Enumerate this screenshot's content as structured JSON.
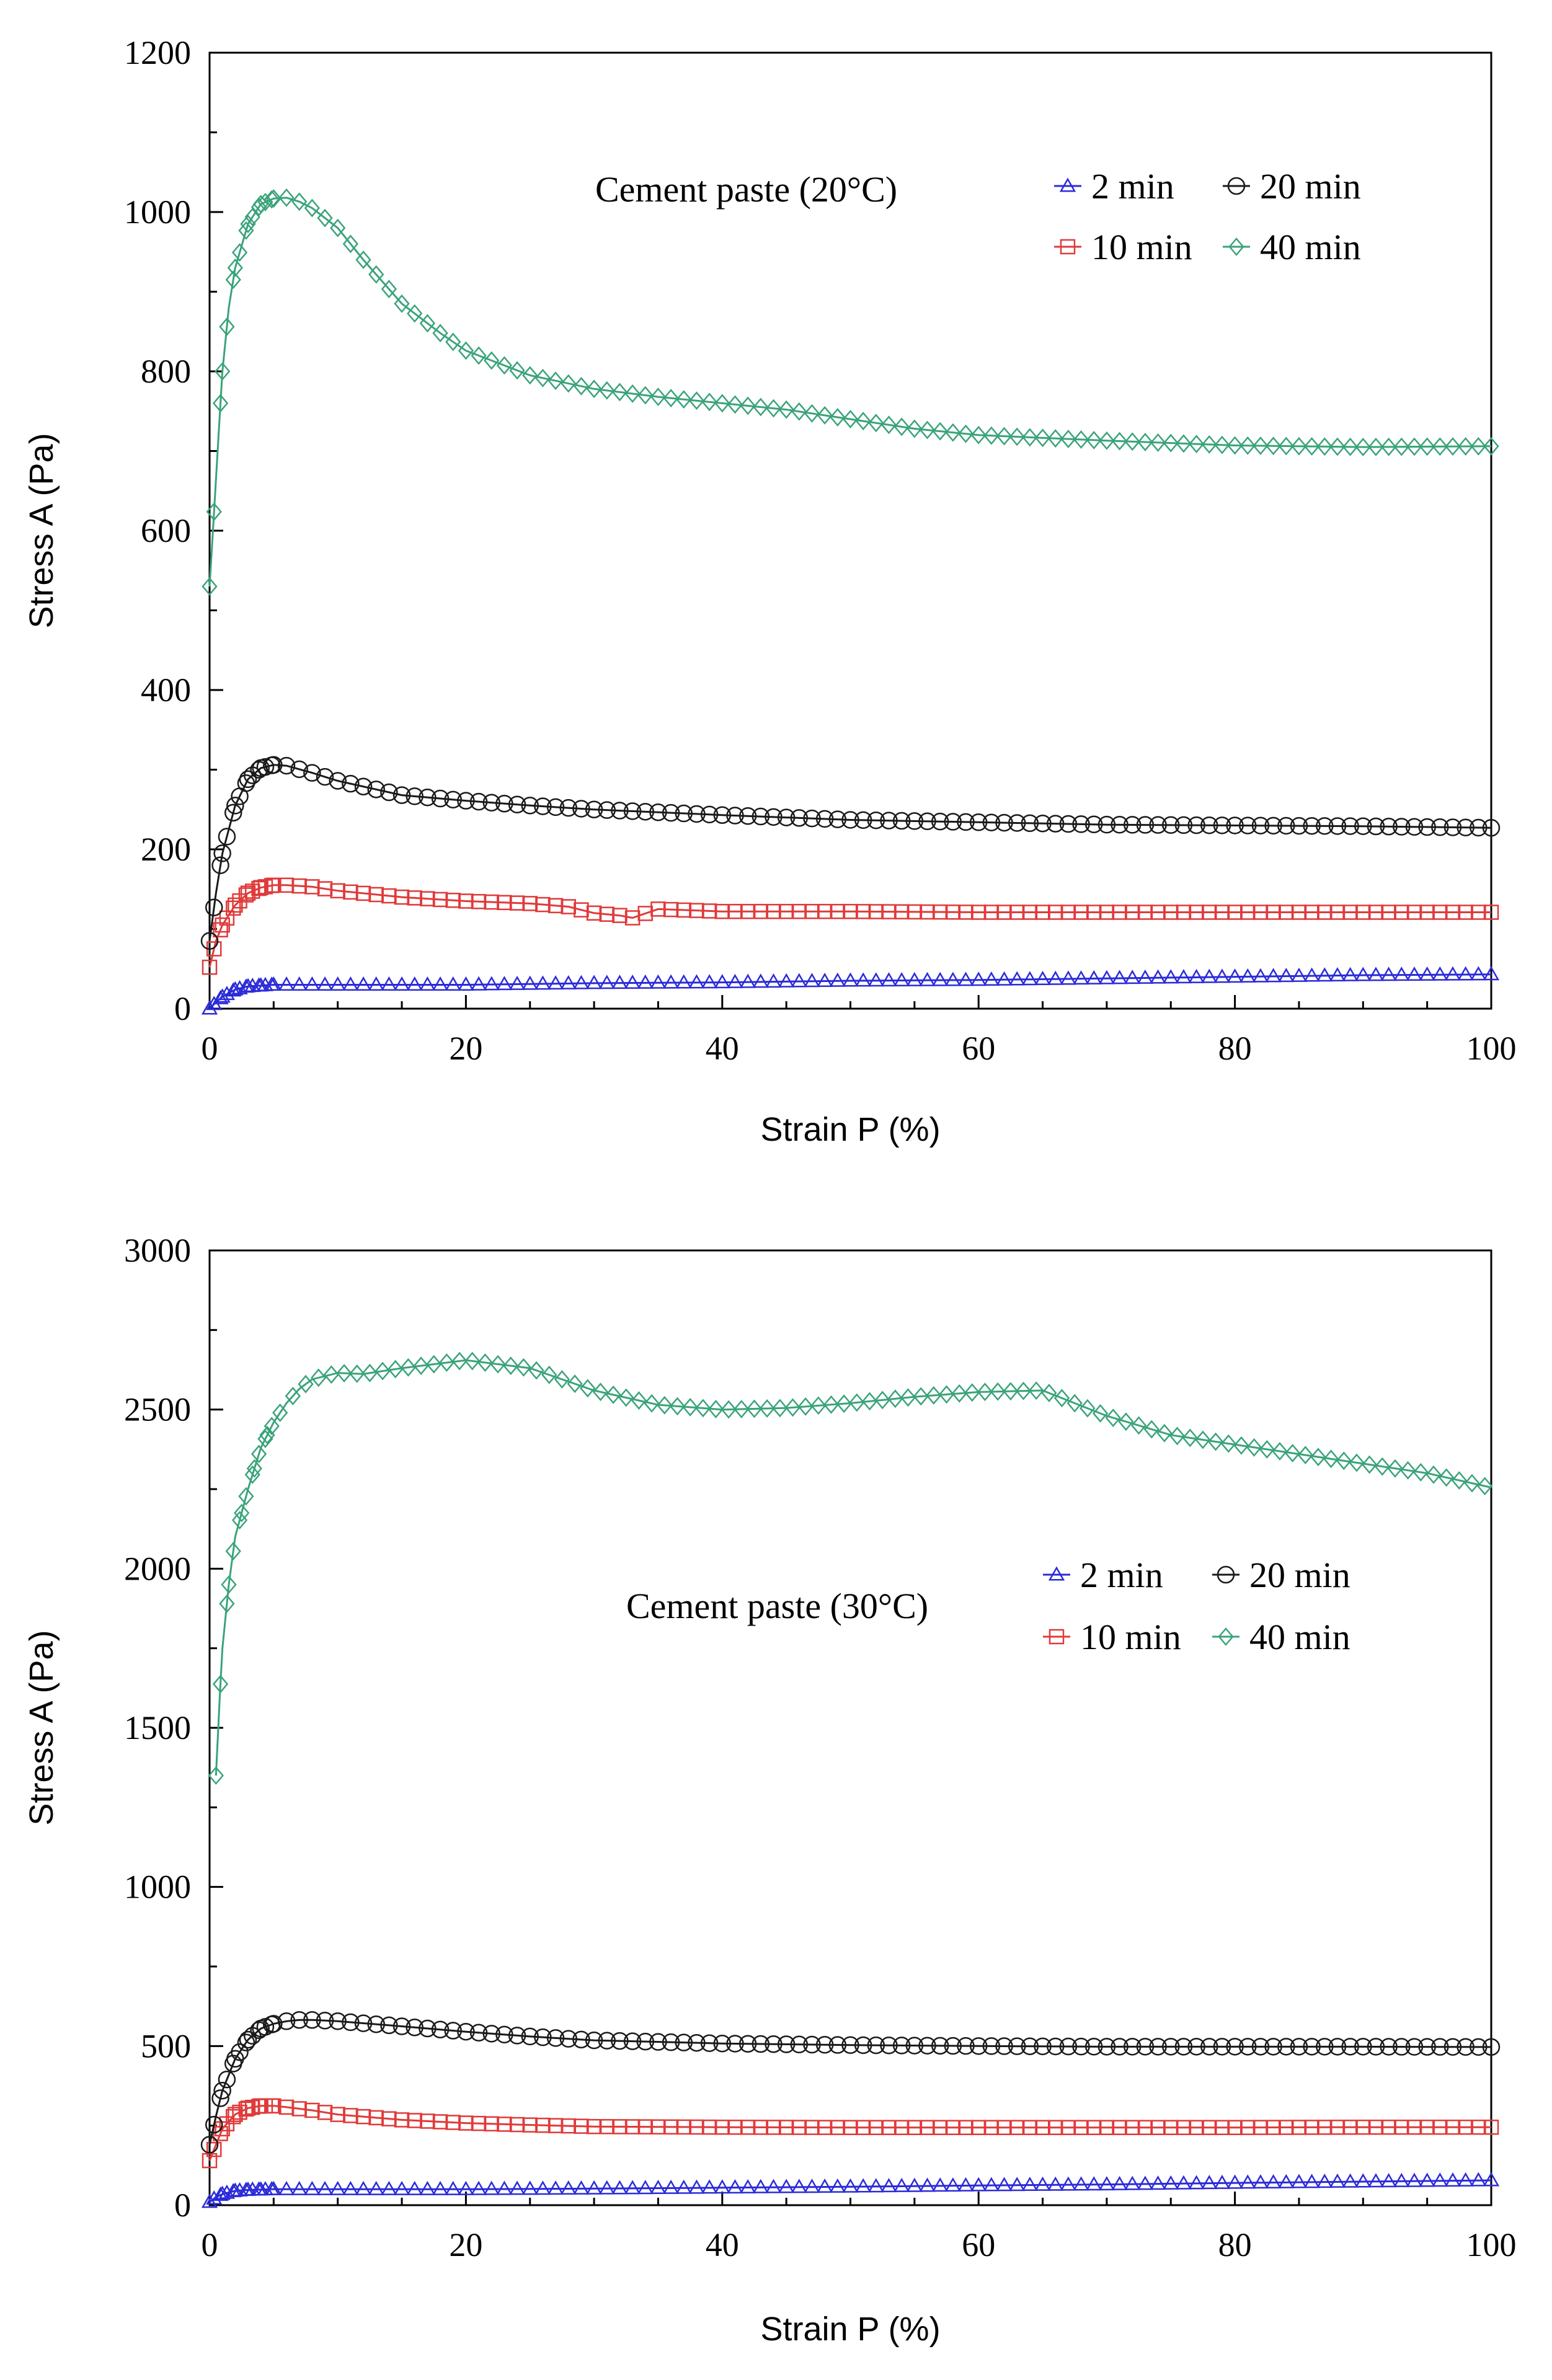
{
  "chart_data": [
    {
      "type": "line",
      "annotation": "Cement paste (20°C)",
      "xlabel": "Strain P (%)",
      "ylabel": "Stress A (Pa)",
      "xlim": [
        0,
        100
      ],
      "ylim": [
        0,
        1200
      ],
      "xticks": [
        0,
        20,
        40,
        60,
        80,
        100
      ],
      "yticks": [
        0,
        200,
        400,
        600,
        800,
        1000,
        1200
      ],
      "legend_position": "top-right",
      "series": [
        {
          "name": "2 min",
          "color": "#2b2bd9",
          "marker": "triangle",
          "x": [
            0,
            0.5,
            1,
            2,
            3,
            5,
            8,
            10,
            15,
            20,
            30,
            40,
            50,
            60,
            70,
            80,
            90,
            100
          ],
          "y": [
            0,
            8,
            15,
            24,
            28,
            30,
            30,
            30,
            30,
            30,
            32,
            33,
            35,
            36,
            38,
            40,
            42,
            43
          ]
        },
        {
          "name": "10 min",
          "color": "#e03a3a",
          "marker": "square",
          "x": [
            0,
            0.5,
            1,
            2,
            3,
            4,
            5,
            6,
            8,
            10,
            15,
            20,
            25,
            28,
            30,
            32,
            33,
            35,
            40,
            50,
            60,
            70,
            80,
            90,
            100
          ],
          "y": [
            52,
            85,
            105,
            130,
            145,
            152,
            155,
            155,
            153,
            148,
            140,
            135,
            132,
            128,
            120,
            117,
            114,
            125,
            122,
            122,
            121,
            121,
            121,
            121,
            121
          ]
        },
        {
          "name": "20 min",
          "color": "#1a1a1a",
          "marker": "circle",
          "x": [
            0,
            0.5,
            1,
            2,
            3,
            4,
            5,
            6,
            8,
            10,
            15,
            20,
            25,
            30,
            40,
            50,
            60,
            70,
            80,
            90,
            100
          ],
          "y": [
            85,
            145,
            195,
            255,
            288,
            302,
            306,
            305,
            296,
            286,
            268,
            261,
            255,
            250,
            243,
            237,
            234,
            231,
            230,
            229,
            227
          ]
        },
        {
          "name": "40 min",
          "color": "#3aa37a",
          "marker": "diamond",
          "x": [
            0,
            0.3,
            0.7,
            1,
            1.5,
            2,
            3,
            4,
            5,
            6,
            7,
            8,
            10,
            12,
            15,
            18,
            20,
            25,
            30,
            35,
            40,
            45,
            50,
            55,
            60,
            70,
            80,
            90,
            100
          ],
          "y": [
            530,
            610,
            720,
            800,
            880,
            930,
            985,
            1010,
            1017,
            1018,
            1013,
            1005,
            980,
            940,
            885,
            848,
            826,
            795,
            778,
            768,
            760,
            752,
            740,
            728,
            720,
            713,
            707,
            705,
            706
          ]
        }
      ]
    },
    {
      "type": "line",
      "annotation": "Cement paste (30°C)",
      "xlabel": "Strain P (%)",
      "ylabel": "Stress A (Pa)",
      "xlim": [
        0,
        100
      ],
      "ylim": [
        0,
        3000
      ],
      "xticks": [
        0,
        20,
        40,
        60,
        80,
        100
      ],
      "yticks": [
        0,
        500,
        1000,
        1500,
        2000,
        2500,
        3000
      ],
      "legend_position": "middle-right",
      "series": [
        {
          "name": "2 min",
          "color": "#2b2bd9",
          "marker": "triangle",
          "x": [
            0,
            0.5,
            1,
            2,
            3,
            5,
            10,
            20,
            30,
            40,
            50,
            60,
            70,
            80,
            90,
            100
          ],
          "y": [
            10,
            25,
            35,
            45,
            48,
            50,
            50,
            50,
            52,
            55,
            58,
            62,
            65,
            70,
            74,
            78
          ]
        },
        {
          "name": "10 min",
          "color": "#e03a3a",
          "marker": "square",
          "x": [
            0,
            0.5,
            1,
            2,
            3,
            4,
            5,
            6,
            8,
            10,
            15,
            20,
            25,
            30,
            40,
            50,
            60,
            70,
            80,
            90,
            100
          ],
          "y": [
            140,
            190,
            240,
            285,
            305,
            312,
            312,
            308,
            298,
            285,
            268,
            258,
            252,
            247,
            245,
            244,
            244,
            244,
            244,
            245,
            245
          ]
        },
        {
          "name": "20 min",
          "color": "#1a1a1a",
          "marker": "circle",
          "x": [
            0,
            0.5,
            1,
            2,
            3,
            4,
            5,
            6,
            7,
            8,
            10,
            15,
            20,
            25,
            30,
            40,
            50,
            60,
            70,
            80,
            90,
            100
          ],
          "y": [
            190,
            280,
            360,
            460,
            520,
            555,
            570,
            578,
            582,
            582,
            578,
            562,
            545,
            530,
            518,
            508,
            503,
            500,
            498,
            498,
            498,
            497
          ]
        },
        {
          "name": "40 min",
          "color": "#3aa37a",
          "marker": "diamond",
          "x": [
            0.5,
            0.8,
            1,
            1.5,
            2,
            3,
            4,
            5,
            6,
            7,
            8,
            10,
            12,
            15,
            20,
            25,
            30,
            35,
            40,
            45,
            50,
            55,
            60,
            65,
            70,
            75,
            80,
            85,
            90,
            95,
            100
          ],
          "y": [
            1350,
            1600,
            1750,
            1950,
            2100,
            2250,
            2380,
            2460,
            2520,
            2565,
            2595,
            2615,
            2612,
            2630,
            2655,
            2630,
            2560,
            2515,
            2500,
            2505,
            2520,
            2540,
            2555,
            2560,
            2480,
            2420,
            2390,
            2360,
            2330,
            2300,
            2255
          ]
        }
      ]
    }
  ]
}
